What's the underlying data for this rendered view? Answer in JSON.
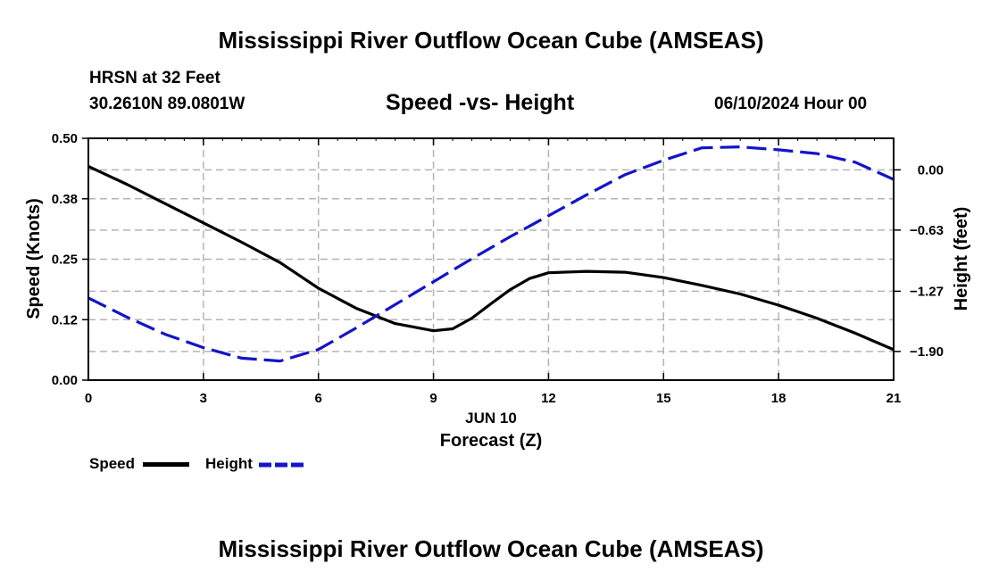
{
  "header": {
    "title": "Mississippi River Outflow Ocean Cube (AMSEAS)",
    "station": "HRSN at 32 Feet",
    "coords": "30.2610N  89.0801W",
    "plot_title": "Speed -vs- Height",
    "datetime": "06/10/2024 Hour 00"
  },
  "footer": {
    "title": "Mississippi River Outflow Ocean Cube (AMSEAS)"
  },
  "legend": {
    "speed_label": "Speed",
    "height_label": "Height"
  },
  "colors": {
    "speed": "#000000",
    "height": "#1414c8",
    "grid": "#b4b4b4"
  },
  "chart_data": {
    "type": "line",
    "title": "Speed -vs- Height",
    "xlabel": "Forecast (Z)",
    "xlabel_date": "JUN 10",
    "ylabel_left": "Speed (Knots)",
    "ylabel_right": "Height (feet)",
    "xlim": [
      0,
      21
    ],
    "ylim_left": [
      0,
      0.5
    ],
    "ylim_right": [
      -2.2,
      0.33
    ],
    "x_ticks": [
      0,
      3,
      6,
      9,
      12,
      15,
      18,
      21
    ],
    "x_tick_labels": [
      "0",
      "3",
      "6",
      "9",
      "12",
      "15",
      "18",
      "21"
    ],
    "left_ticks": [
      0,
      0.125,
      0.25,
      0.375,
      0.5
    ],
    "left_tick_labels": [
      "0.00",
      "0.12",
      "0.25",
      "0.38",
      "0.50"
    ],
    "right_ticks": [
      0,
      -0.63,
      -1.27,
      -1.9
    ],
    "right_tick_labels": [
      "0.00",
      "−0.63",
      "−1.27",
      "−1.90"
    ],
    "series": [
      {
        "name": "Speed",
        "axis": "left",
        "style": "solid",
        "x": [
          0,
          1,
          2,
          3,
          4,
          5,
          6,
          7,
          8,
          9,
          9.5,
          10,
          10.5,
          11,
          11.5,
          12,
          13,
          14,
          15,
          16,
          17,
          18,
          19,
          20,
          21
        ],
        "y": [
          0.442,
          0.405,
          0.365,
          0.325,
          0.285,
          0.243,
          0.19,
          0.148,
          0.117,
          0.102,
          0.106,
          0.128,
          0.158,
          0.187,
          0.21,
          0.222,
          0.225,
          0.223,
          0.212,
          0.196,
          0.178,
          0.155,
          0.128,
          0.097,
          0.063
        ]
      },
      {
        "name": "Height",
        "axis": "right",
        "style": "dashed",
        "x": [
          0,
          1,
          2,
          3,
          4,
          5,
          6,
          7,
          8,
          9,
          10,
          11,
          12,
          13,
          14,
          15,
          16,
          17,
          18,
          19,
          20,
          21
        ],
        "y": [
          -1.34,
          -1.54,
          -1.72,
          -1.86,
          -1.97,
          -2.0,
          -1.88,
          -1.65,
          -1.41,
          -1.17,
          -0.93,
          -0.7,
          -0.48,
          -0.26,
          -0.05,
          0.1,
          0.23,
          0.24,
          0.21,
          0.17,
          0.08,
          -0.1
        ]
      }
    ]
  }
}
